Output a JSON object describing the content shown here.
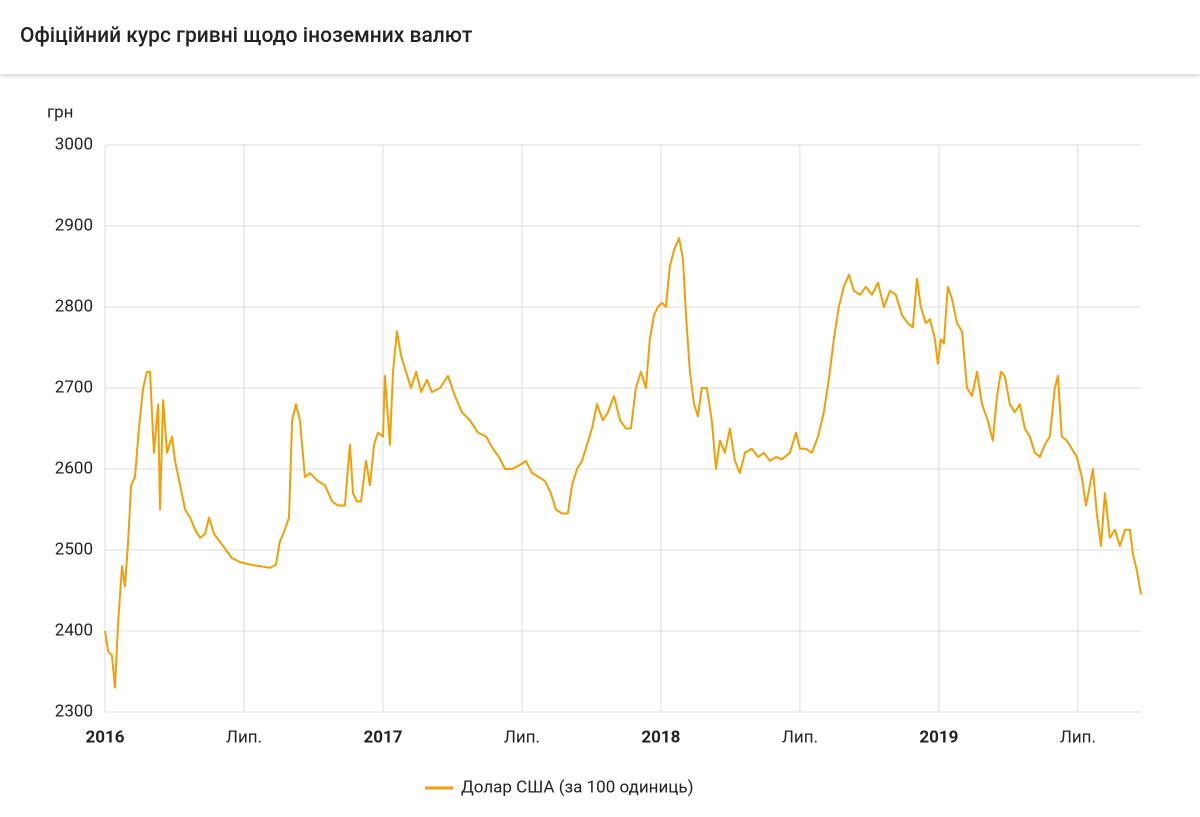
{
  "chart_data": {
    "type": "line",
    "title": "Офіційний курс гривні щодо іноземних валют",
    "y_label": "грн",
    "x": [
      2016.0,
      2016.011,
      2016.025,
      2016.036,
      2016.047,
      2016.061,
      2016.072,
      2016.083,
      2016.094,
      2016.108,
      2016.122,
      2016.137,
      2016.151,
      2016.162,
      2016.176,
      2016.191,
      2016.198,
      2016.209,
      2016.223,
      2016.241,
      2016.252,
      2016.27,
      2016.288,
      2016.306,
      2016.324,
      2016.342,
      2016.36,
      2016.374,
      2016.392,
      2016.414,
      2016.435,
      2016.457,
      2016.486,
      2016.522,
      2016.558,
      2016.594,
      2016.615,
      2016.629,
      2016.647,
      2016.662,
      2016.673,
      2016.687,
      2016.701,
      2016.719,
      2016.737,
      2016.766,
      2016.791,
      2016.817,
      2016.838,
      2016.863,
      2016.881,
      2016.892,
      2016.906,
      2016.921,
      2016.939,
      2016.953,
      2016.968,
      2016.982,
      2017.0,
      2017.007,
      2017.025,
      2017.036,
      2017.05,
      2017.065,
      2017.083,
      2017.101,
      2017.119,
      2017.137,
      2017.158,
      2017.176,
      2017.205,
      2017.234,
      2017.259,
      2017.284,
      2017.313,
      2017.342,
      2017.371,
      2017.396,
      2017.417,
      2017.439,
      2017.464,
      2017.493,
      2017.514,
      2017.536,
      2017.561,
      2017.583,
      2017.604,
      2017.622,
      2017.644,
      2017.665,
      2017.68,
      2017.698,
      2017.716,
      2017.734,
      2017.752,
      2017.77,
      2017.791,
      2017.809,
      2017.831,
      2017.853,
      2017.874,
      2017.892,
      2017.91,
      2017.928,
      2017.946,
      2017.96,
      2017.975,
      2017.989,
      2018.004,
      2018.018,
      2018.032,
      2018.047,
      2018.065,
      2018.079,
      2018.09,
      2018.104,
      2018.119,
      2018.133,
      2018.147,
      2018.165,
      2018.183,
      2018.198,
      2018.212,
      2018.23,
      2018.248,
      2018.266,
      2018.284,
      2018.302,
      2018.327,
      2018.349,
      2018.371,
      2018.392,
      2018.414,
      2018.435,
      2018.464,
      2018.486,
      2018.5,
      2018.522,
      2018.543,
      2018.565,
      2018.586,
      2018.604,
      2018.622,
      2018.64,
      2018.658,
      2018.676,
      2018.694,
      2018.716,
      2018.737,
      2018.759,
      2018.781,
      2018.802,
      2018.824,
      2018.845,
      2018.867,
      2018.888,
      2018.906,
      2018.921,
      2018.935,
      2018.953,
      2018.968,
      2018.986,
      2018.996,
      2019.007,
      2019.018,
      2019.032,
      2019.047,
      2019.065,
      2019.083,
      2019.101,
      2019.119,
      2019.137,
      2019.155,
      2019.176,
      2019.194,
      2019.209,
      2019.223,
      2019.237,
      2019.255,
      2019.273,
      2019.291,
      2019.309,
      2019.327,
      2019.345,
      2019.363,
      2019.381,
      2019.399,
      2019.417,
      2019.428,
      2019.442,
      2019.46,
      2019.478,
      2019.496,
      2019.514,
      2019.529,
      2019.543,
      2019.554,
      2019.568,
      2019.583,
      2019.597,
      2019.615,
      2019.633,
      2019.651,
      2019.669,
      2019.687,
      2019.698,
      2019.712,
      2019.727
    ],
    "series": [
      {
        "name": "Долар США (за 100 одиниць)",
        "color": "#f29f05",
        "values": [
          2400,
          2375,
          2370,
          2330,
          2410,
          2480,
          2455,
          2510,
          2580,
          2590,
          2650,
          2700,
          2720,
          2720,
          2620,
          2680,
          2550,
          2685,
          2620,
          2640,
          2610,
          2580,
          2550,
          2540,
          2525,
          2515,
          2520,
          2540,
          2520,
          2510,
          2500,
          2490,
          2485,
          2482,
          2480,
          2478,
          2482,
          2510,
          2525,
          2540,
          2660,
          2680,
          2660,
          2590,
          2595,
          2585,
          2580,
          2560,
          2555,
          2555,
          2630,
          2570,
          2560,
          2560,
          2610,
          2580,
          2630,
          2645,
          2640,
          2715,
          2630,
          2720,
          2770,
          2740,
          2720,
          2700,
          2720,
          2695,
          2710,
          2695,
          2700,
          2715,
          2690,
          2670,
          2660,
          2645,
          2640,
          2625,
          2615,
          2600,
          2600,
          2605,
          2610,
          2595,
          2590,
          2585,
          2570,
          2550,
          2545,
          2545,
          2580,
          2600,
          2610,
          2630,
          2650,
          2680,
          2660,
          2670,
          2690,
          2660,
          2650,
          2650,
          2700,
          2720,
          2700,
          2760,
          2790,
          2800,
          2805,
          2800,
          2850,
          2870,
          2885,
          2860,
          2790,
          2720,
          2680,
          2665,
          2700,
          2700,
          2660,
          2600,
          2635,
          2620,
          2650,
          2610,
          2595,
          2620,
          2625,
          2615,
          2620,
          2610,
          2615,
          2612,
          2620,
          2645,
          2625,
          2625,
          2620,
          2640,
          2670,
          2710,
          2760,
          2800,
          2825,
          2840,
          2820,
          2815,
          2825,
          2815,
          2830,
          2800,
          2820,
          2815,
          2790,
          2780,
          2775,
          2835,
          2800,
          2780,
          2785,
          2760,
          2730,
          2760,
          2755,
          2825,
          2810,
          2780,
          2770,
          2700,
          2690,
          2720,
          2680,
          2660,
          2635,
          2690,
          2720,
          2715,
          2680,
          2670,
          2680,
          2650,
          2640,
          2620,
          2615,
          2630,
          2640,
          2700,
          2715,
          2640,
          2635,
          2625,
          2615,
          2590,
          2555,
          2580,
          2600,
          2545,
          2505,
          2570,
          2515,
          2525,
          2505,
          2525,
          2525,
          2495,
          2475,
          2445
        ]
      }
    ],
    "xlim": [
      2016,
      2019.727
    ],
    "xticks": [
      2016,
      {
        "value": 2016.5,
        "label": "Лип."
      },
      2017,
      {
        "value": 2017.5,
        "label": "Лип."
      },
      2018,
      {
        "value": 2018.5,
        "label": "Лип."
      },
      2019,
      {
        "value": 2019.5,
        "label": "Лип."
      }
    ],
    "ylim": [
      2300,
      3000
    ],
    "yticks": [
      2300,
      2400,
      2500,
      2600,
      2700,
      2800,
      2900,
      3000
    ],
    "grid": true,
    "legend": "bottom"
  }
}
